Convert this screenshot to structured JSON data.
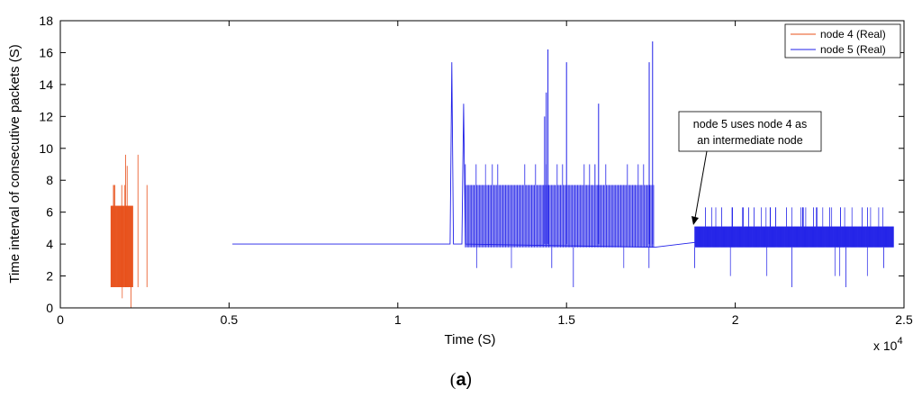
{
  "chart_data": {
    "type": "line",
    "title": "",
    "xlabel": "Time (S)",
    "ylabel": "Time interval of consecutive packets (S)",
    "x_multiplier_label": "x 10",
    "x_multiplier_exponent": "4",
    "xlim": [
      0,
      25000
    ],
    "ylim": [
      0,
      18
    ],
    "x_ticks": [
      0,
      5000,
      10000,
      15000,
      20000,
      25000
    ],
    "x_tick_labels": [
      "0",
      "0.5",
      "1",
      "1.5",
      "2",
      "2.5"
    ],
    "y_ticks": [
      0,
      2,
      4,
      6,
      8,
      10,
      12,
      14,
      16,
      18
    ],
    "y_tick_labels": [
      "0",
      "2",
      "4",
      "6",
      "8",
      "10",
      "12",
      "14",
      "16",
      "18"
    ],
    "grid": false,
    "legend_position": "top-right",
    "series": [
      {
        "name": "node 4 (Real)",
        "color": "#e8501a",
        "segments": [
          {
            "x_start": 1500,
            "x_end": 2150,
            "band_low": 1.3,
            "band_high": 6.4,
            "spike_levels": [
              7.7,
              0.6,
              8.9,
              9.6,
              0
            ]
          }
        ]
      },
      {
        "name": "node 5 (Real)",
        "color": "#1f1fe8",
        "line_points": [
          [
            5100,
            4.0
          ],
          [
            11550,
            4.0
          ],
          [
            11600,
            15.4
          ],
          [
            11650,
            4.0
          ],
          [
            11900,
            4.0
          ],
          [
            11950,
            12.8
          ],
          [
            12000,
            4.0
          ],
          [
            17600,
            3.8
          ],
          [
            18800,
            4.1
          ]
        ],
        "segments": [
          {
            "x_start": 12000,
            "x_end": 17600,
            "band_low": 3.8,
            "band_high": 7.7,
            "spike_levels": [
              9.0,
              2.5,
              1.3,
              15.4,
              16.2,
              13.5,
              12.8,
              16.7
            ]
          },
          {
            "x_start": 18800,
            "x_end": 24700,
            "band_low": 3.8,
            "band_high": 5.1,
            "spike_levels": [
              6.3,
              2.0,
              1.3,
              6.3
            ]
          }
        ],
        "peaks": [
          [
            14450,
            16.2
          ],
          [
            14400,
            13.5
          ],
          [
            14350,
            12.0
          ],
          [
            15000,
            15.4
          ],
          [
            15950,
            12.8
          ],
          [
            17550,
            16.7
          ],
          [
            17450,
            15.4
          ]
        ]
      }
    ],
    "annotation": {
      "lines": [
        "node 5 uses node 4 as",
        "an intermediate node"
      ],
      "arrow_target": [
        18800,
        5.0
      ]
    }
  },
  "caption": "(a)"
}
